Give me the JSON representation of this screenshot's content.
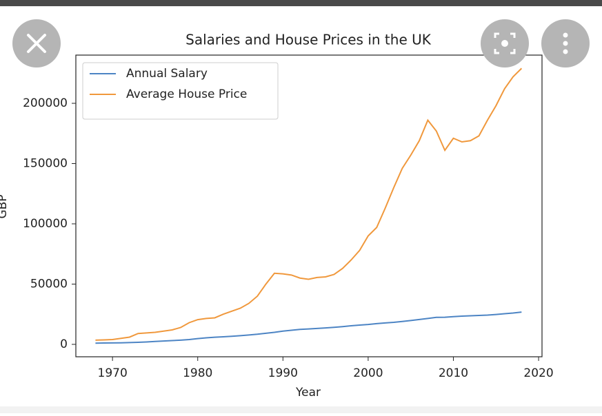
{
  "chart_data": {
    "type": "line",
    "title": "Salaries and House Prices in the UK",
    "x_label": "Year",
    "y_label": "GBP",
    "x": [
      1968,
      1969,
      1970,
      1971,
      1972,
      1973,
      1974,
      1975,
      1976,
      1977,
      1978,
      1979,
      1980,
      1981,
      1982,
      1983,
      1984,
      1985,
      1986,
      1987,
      1988,
      1989,
      1990,
      1991,
      1992,
      1993,
      1994,
      1995,
      1996,
      1997,
      1998,
      1999,
      2000,
      2001,
      2002,
      2003,
      2004,
      2005,
      2006,
      2007,
      2008,
      2009,
      2010,
      2011,
      2012,
      2013,
      2014,
      2015,
      2016,
      2017,
      2018
    ],
    "series": [
      {
        "name": "Annual Salary",
        "color": "#4c84c4",
        "values": [
          1000,
          1100,
          1200,
          1300,
          1500,
          1700,
          2000,
          2400,
          2800,
          3100,
          3500,
          4000,
          4800,
          5400,
          5900,
          6300,
          6700,
          7200,
          7800,
          8400,
          9200,
          10000,
          11000,
          11700,
          12400,
          12800,
          13200,
          13600,
          14100,
          14700,
          15400,
          16000,
          16500,
          17200,
          17800,
          18300,
          19000,
          19800,
          20600,
          21500,
          22400,
          22500,
          23000,
          23400,
          23700,
          24000,
          24300,
          24800,
          25400,
          26000,
          26800
        ]
      },
      {
        "name": "Average House Price",
        "color": "#f0983c",
        "values": [
          3500,
          3700,
          4000,
          5000,
          6000,
          9000,
          9500,
          10000,
          11000,
          12000,
          14000,
          18000,
          20500,
          21500,
          22000,
          25000,
          27500,
          30000,
          34000,
          40000,
          50000,
          59000,
          58500,
          57500,
          55000,
          54000,
          55500,
          56000,
          58000,
          63000,
          70000,
          78000,
          90000,
          97000,
          113000,
          130000,
          146000,
          157000,
          169000,
          186000,
          177000,
          161000,
          171000,
          168000,
          169000,
          173000,
          186000,
          198000,
          212000,
          222000,
          229000
        ]
      }
    ],
    "xlim": [
      1965.7,
      2020.4
    ],
    "ylim": [
      -10300,
      240000
    ],
    "xticks": [
      1970,
      1980,
      1990,
      2000,
      2010,
      2020
    ],
    "yticks": [
      0,
      50000,
      100000,
      150000,
      200000
    ],
    "legend": "upper left",
    "grid": false
  }
}
